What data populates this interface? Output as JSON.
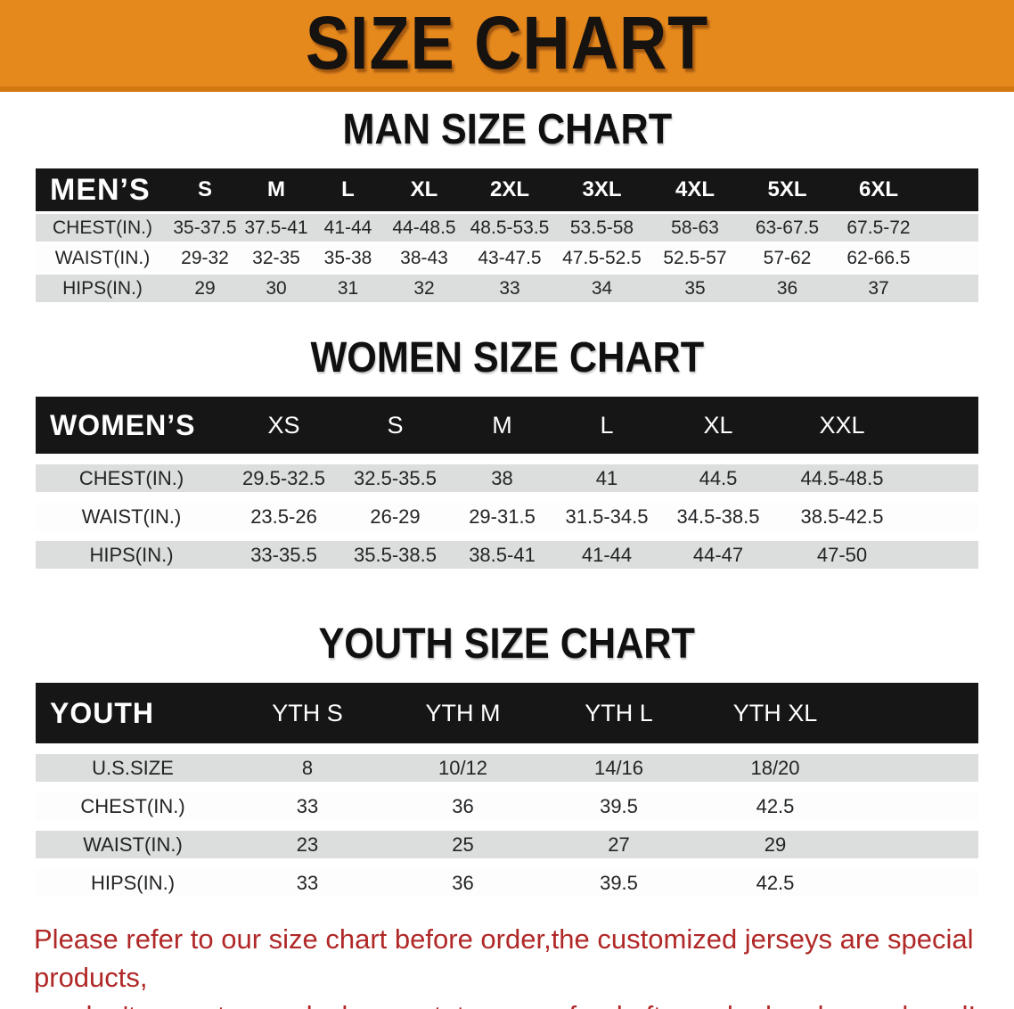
{
  "banner": {
    "title": "SIZE CHART",
    "background_color": "#E6891D"
  },
  "sections": [
    {
      "key": "men",
      "heading": "MAN SIZE CHART",
      "table": {
        "label": "MEN’S",
        "columns": [
          "S",
          "M",
          "L",
          "XL",
          "2XL",
          "3XL",
          "4XL",
          "5XL",
          "6XL"
        ],
        "rows": [
          {
            "label": "CHEST(IN.)",
            "values": [
              "35-37.5",
              "37.5-41",
              "41-44",
              "44-48.5",
              "48.5-53.5",
              "53.5-58",
              "58-63",
              "63-67.5",
              "67.5-72"
            ]
          },
          {
            "label": "WAIST(IN.)",
            "values": [
              "29-32",
              "32-35",
              "35-38",
              "38-43",
              "43-47.5",
              "47.5-52.5",
              "52.5-57",
              "57-62",
              "62-66.5"
            ]
          },
          {
            "label": "HIPS(IN.)",
            "values": [
              "29",
              "30",
              "31",
              "32",
              "33",
              "34",
              "35",
              "36",
              "37"
            ]
          }
        ]
      }
    },
    {
      "key": "women",
      "heading": "WOMEN SIZE CHART",
      "table": {
        "label": "WOMEN’S",
        "columns": [
          "XS",
          "S",
          "M",
          "L",
          "XL",
          "XXL"
        ],
        "rows": [
          {
            "label": "CHEST(IN.)",
            "values": [
              "29.5-32.5",
              "32.5-35.5",
              "38",
              "41",
              "44.5",
              "44.5-48.5"
            ]
          },
          {
            "label": "WAIST(IN.)",
            "values": [
              "23.5-26",
              "26-29",
              "29-31.5",
              "31.5-34.5",
              "34.5-38.5",
              "38.5-42.5"
            ]
          },
          {
            "label": "HIPS(IN.)",
            "values": [
              "33-35.5",
              "35.5-38.5",
              "38.5-41",
              "41-44",
              "44-47",
              "47-50"
            ]
          }
        ]
      }
    },
    {
      "key": "youth",
      "heading": "YOUTH SIZE CHART",
      "table": {
        "label": "YOUTH",
        "columns": [
          "YTH S",
          "YTH M",
          "YTH L",
          "YTH XL"
        ],
        "rows": [
          {
            "label": "U.S.SIZE",
            "values": [
              "8",
              "10/12",
              "14/16",
              "18/20"
            ]
          },
          {
            "label": "CHEST(IN.)",
            "values": [
              "33",
              "36",
              "39.5",
              "42.5"
            ]
          },
          {
            "label": "WAIST(IN.)",
            "values": [
              "23",
              "25",
              "27",
              "29"
            ]
          },
          {
            "label": "HIPS(IN.)",
            "values": [
              "33",
              "36",
              "39.5",
              "42.5"
            ]
          }
        ]
      }
    }
  ],
  "footnote": {
    "text_color": "#B02827",
    "lines": [
      "Please refer to our size chart before order,the customized jerseys are special products,",
      "we don't accept cancel, change, teturn or refund after order has been placed!"
    ]
  }
}
